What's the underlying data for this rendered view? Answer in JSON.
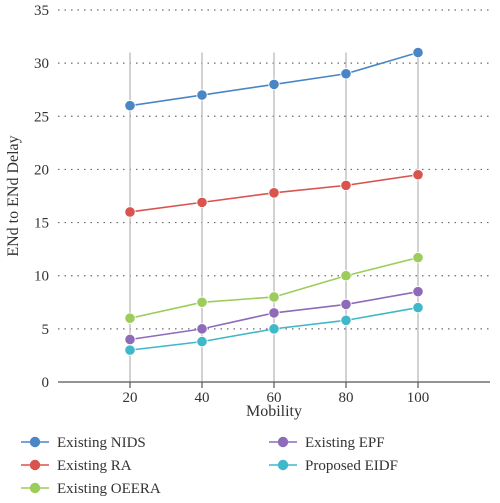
{
  "chart_data": {
    "type": "line",
    "title": "",
    "xlabel": "Mobility",
    "ylabel": "ENd to ENd Delay",
    "x": [
      20,
      40,
      60,
      80,
      100
    ],
    "xticks": [
      "20",
      "40",
      "60",
      "80",
      "100"
    ],
    "xlim": [
      0,
      120
    ],
    "ylim": [
      0,
      35
    ],
    "yticks": [
      0,
      5,
      10,
      15,
      20,
      25,
      30,
      35
    ],
    "grid": "horizontal dotted",
    "legend_position": "bottom",
    "series": [
      {
        "name": "Existing NIDS",
        "color": "#4a86c5",
        "values": [
          26,
          27,
          28,
          29,
          31
        ]
      },
      {
        "name": "Existing RA",
        "color": "#d9534f",
        "values": [
          16,
          16.9,
          17.8,
          18.5,
          19.5
        ]
      },
      {
        "name": "Existing OEERA",
        "color": "#9ccc5a",
        "values": [
          6,
          7.5,
          8,
          10,
          11.7
        ]
      },
      {
        "name": "Existing EPF",
        "color": "#8e6bb8",
        "values": [
          4,
          5,
          6.5,
          7.3,
          8.5
        ]
      },
      {
        "name": "Proposed EIDF",
        "color": "#3fb8c9",
        "values": [
          3,
          3.8,
          5,
          5.8,
          7
        ]
      }
    ]
  }
}
